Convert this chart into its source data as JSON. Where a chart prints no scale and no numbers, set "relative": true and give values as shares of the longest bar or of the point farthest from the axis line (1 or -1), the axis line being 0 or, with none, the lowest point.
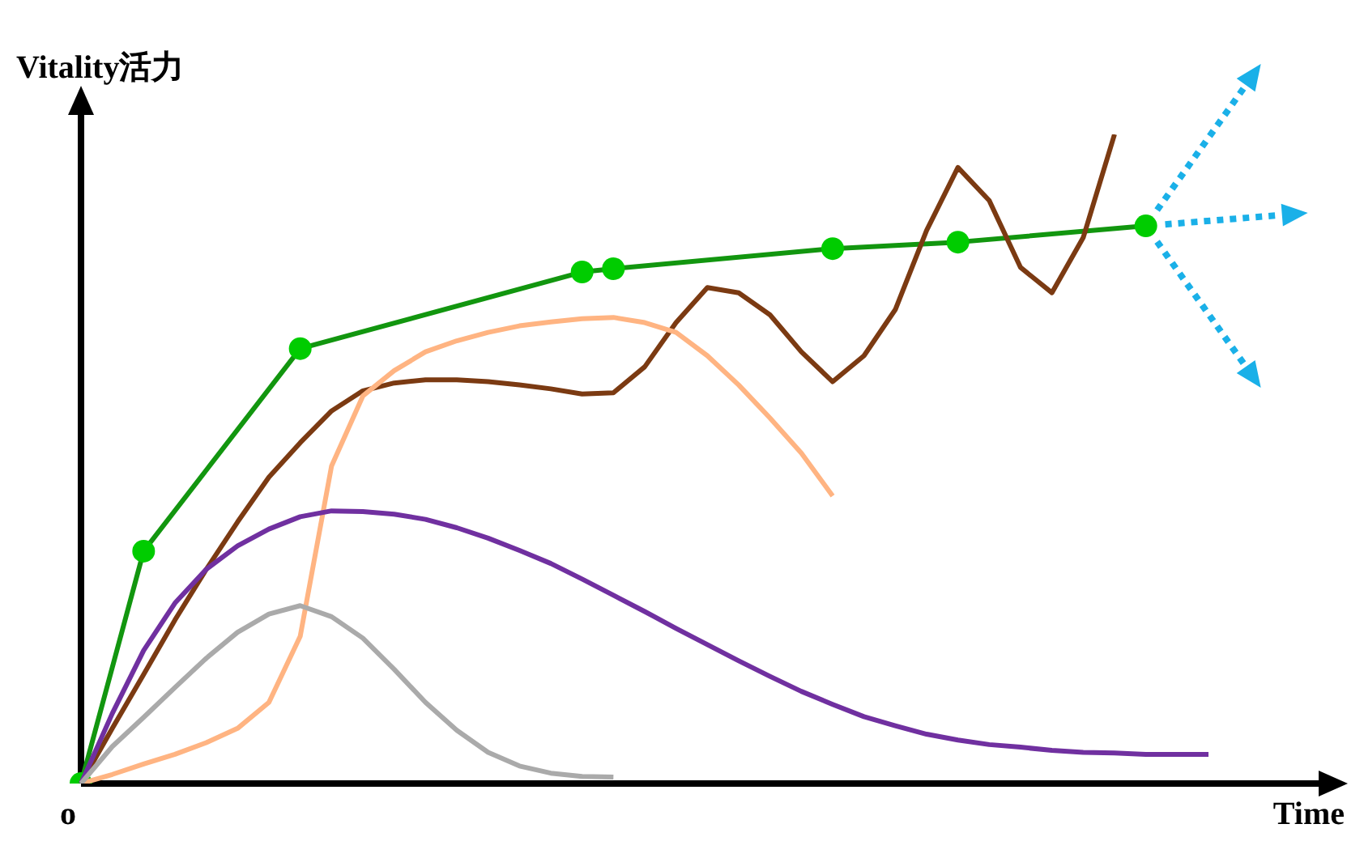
{
  "chart_data": {
    "type": "line",
    "relative": true,
    "xlabel": "Time",
    "ylabel": "Vitality活力",
    "annotations": [
      "o"
    ],
    "tick_labels": false,
    "categories": [
      null,
      null,
      null,
      null,
      null,
      null,
      null,
      null,
      null,
      null,
      null,
      null,
      null,
      null,
      null,
      null,
      null,
      null,
      null,
      null,
      null,
      null,
      null,
      null,
      null,
      null,
      null,
      null,
      null,
      null,
      null,
      null,
      null,
      null,
      null,
      null,
      null,
      null,
      null,
      null
    ],
    "series": [
      {
        "color": "#aaaaaa",
        "values": [
          0,
          0.057,
          0.102,
          0.148,
          0.193,
          0.233,
          0.261,
          0.274,
          0.257,
          0.224,
          0.176,
          0.125,
          0.082,
          0.048,
          0.027,
          0.016,
          0.011,
          0.01,
          null,
          null,
          null,
          null,
          null,
          null,
          null,
          null,
          null,
          null,
          null,
          null,
          null,
          null,
          null,
          null,
          null,
          null,
          null,
          null,
          null,
          null
        ]
      },
      {
        "color": "#7030a0",
        "values": [
          0,
          0.108,
          0.205,
          0.278,
          0.33,
          0.366,
          0.392,
          0.411,
          0.42,
          0.419,
          0.415,
          0.407,
          0.394,
          0.378,
          0.359,
          0.339,
          0.315,
          0.29,
          0.265,
          0.239,
          0.214,
          0.189,
          0.165,
          0.142,
          0.122,
          0.103,
          0.089,
          0.076,
          0.067,
          0.06,
          0.056,
          0.051,
          0.048,
          0.047,
          0.045,
          0.045,
          0.045,
          null,
          null,
          null
        ]
      },
      {
        "color": "#ffb482",
        "values": [
          0,
          0.014,
          0.03,
          0.045,
          0.063,
          0.085,
          0.125,
          0.227,
          0.489,
          0.597,
          0.636,
          0.665,
          0.682,
          0.695,
          0.705,
          0.711,
          0.716,
          0.718,
          0.71,
          0.695,
          0.659,
          0.614,
          0.563,
          0.509,
          0.443,
          null,
          null,
          null,
          null,
          null,
          null,
          null,
          null,
          null,
          null,
          null,
          null,
          null,
          null,
          null
        ]
      },
      {
        "color": "#7b3a12",
        "values": [
          0,
          0.085,
          0.168,
          0.252,
          0.33,
          0.403,
          0.472,
          0.525,
          0.574,
          0.605,
          0.617,
          0.622,
          0.622,
          0.619,
          0.614,
          0.608,
          0.6,
          0.602,
          0.642,
          0.71,
          0.764,
          0.756,
          0.722,
          0.665,
          0.619,
          0.659,
          0.73,
          0.852,
          0.949,
          0.898,
          0.795,
          0.756,
          0.841,
          1,
          null,
          null,
          null,
          null,
          null,
          null
        ]
      },
      {
        "color": "#12960f",
        "marker": "circle",
        "values": [
          0,
          null,
          0.358,
          null,
          null,
          null,
          null,
          0.67,
          null,
          null,
          null,
          null,
          null,
          null,
          null,
          null,
          0.788,
          0.793,
          null,
          null,
          null,
          null,
          null,
          null,
          0.824,
          null,
          null,
          null,
          0.834,
          null,
          null,
          null,
          null,
          null,
          0.859,
          null,
          null,
          null,
          null,
          null
        ]
      }
    ]
  }
}
